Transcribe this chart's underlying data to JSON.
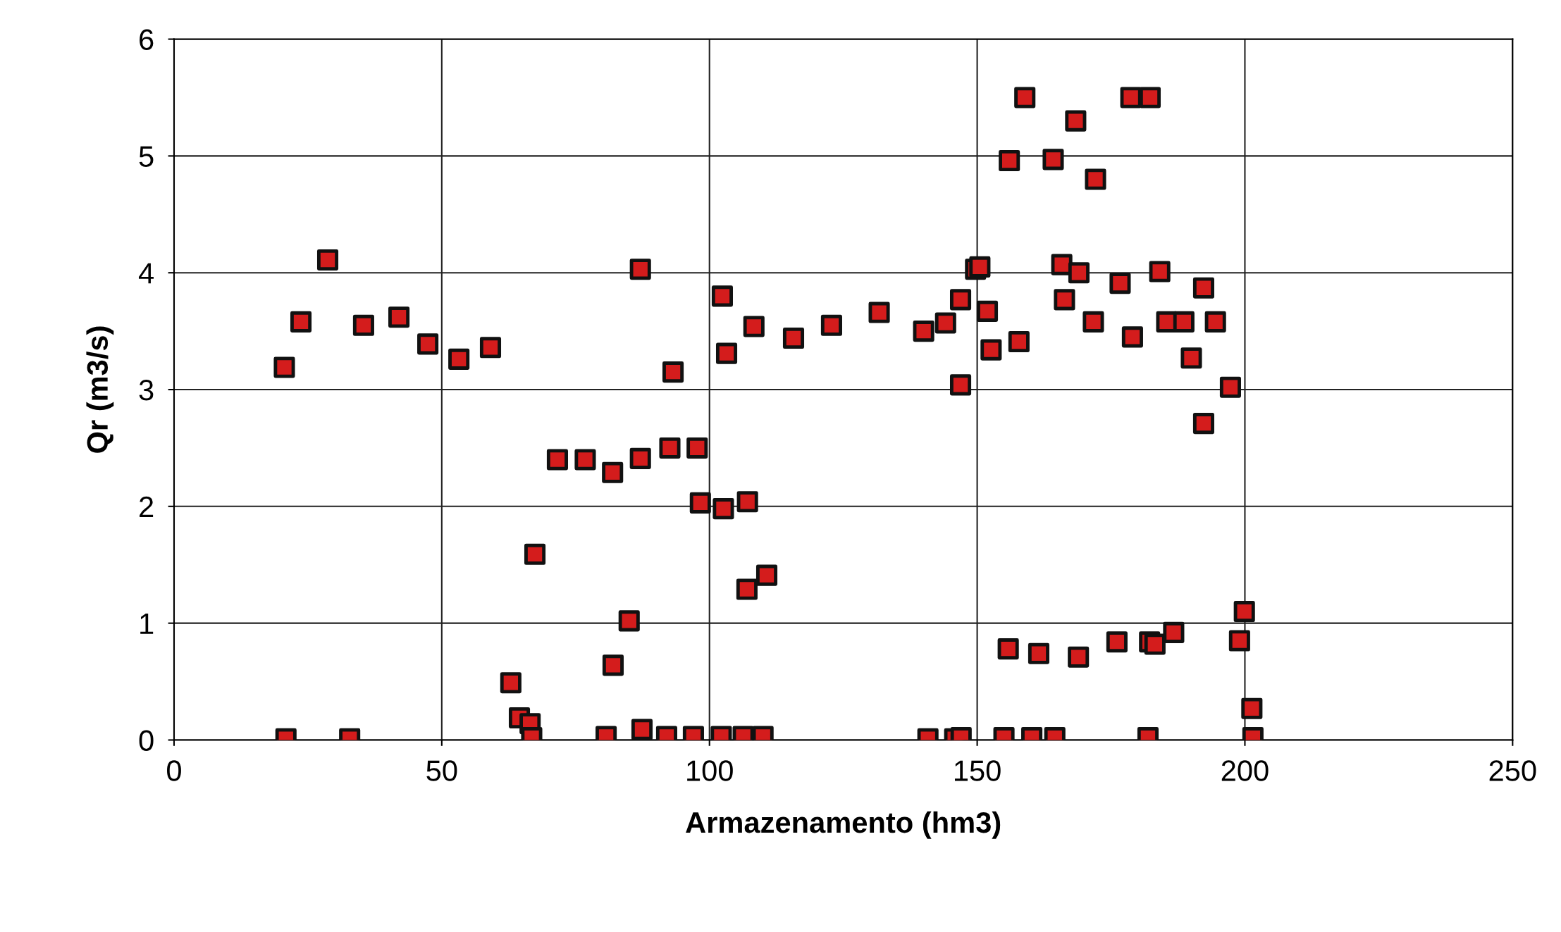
{
  "chart_data": {
    "type": "scatter",
    "xlabel": "Armazenamento (hm3)",
    "ylabel": "Qr (m3/s)",
    "xlim": [
      0,
      250
    ],
    "ylim": [
      0,
      6
    ],
    "xticks": [
      0,
      50,
      100,
      150,
      200,
      250
    ],
    "yticks": [
      0,
      1,
      2,
      3,
      4,
      5,
      6
    ],
    "grid": true,
    "marker": "square",
    "series": [
      {
        "color": "#d41c1c",
        "x": [
          20.6,
          23.7,
          28.7,
          35.4,
          42.0,
          47.4,
          53.2,
          59.1,
          87.1,
          93.2,
          102.4,
          103.2,
          108.3,
          115.7,
          122.8,
          71.6,
          76.8,
          81.9,
          87.1,
          92.6,
          97.7,
          98.3,
          102.6,
          107.1,
          67.4,
          107.0,
          110.7,
          85.0,
          82.0,
          62.9,
          64.5,
          66.5,
          66.8,
          20.9,
          32.8,
          80.7,
          87.4,
          92.0,
          97.0,
          102.2,
          106.3,
          110.0,
          158.9,
          178.7,
          182.3,
          168.4,
          156.0,
          164.2,
          172.1,
          131.7,
          140.0,
          144.1,
          146.9,
          149.7,
          150.5,
          151.9,
          152.6,
          157.8,
          146.9,
          165.8,
          169.0,
          166.3,
          171.7,
          176.7,
          179.0,
          184.1,
          185.4,
          188.6,
          192.3,
          194.5,
          190.0,
          197.3,
          192.3,
          155.8,
          161.5,
          168.9,
          176.1,
          182.2,
          183.2,
          186.7,
          199.9,
          199.0,
          201.3,
          201.5,
          140.8,
          145.8,
          147.0,
          155.0,
          160.2,
          164.5,
          181.9
        ],
        "values": [
          3.19,
          3.58,
          4.11,
          3.55,
          3.62,
          3.39,
          3.26,
          3.36,
          4.03,
          3.15,
          3.8,
          3.31,
          3.54,
          3.44,
          3.55,
          2.4,
          2.4,
          2.29,
          2.41,
          2.5,
          2.5,
          2.03,
          1.98,
          2.04,
          1.59,
          1.29,
          1.41,
          1.02,
          0.64,
          0.49,
          0.19,
          0.14,
          0.02,
          0.01,
          0.01,
          0.03,
          0.09,
          0.03,
          0.03,
          0.03,
          0.03,
          0.03,
          5.5,
          5.5,
          5.5,
          5.3,
          4.96,
          4.97,
          4.8,
          3.66,
          3.5,
          3.57,
          3.77,
          4.03,
          4.05,
          3.67,
          3.34,
          3.41,
          3.04,
          4.07,
          4.0,
          3.77,
          3.58,
          3.91,
          3.45,
          4.01,
          3.58,
          3.58,
          3.87,
          3.58,
          3.27,
          3.02,
          2.71,
          0.78,
          0.74,
          0.71,
          0.84,
          0.84,
          0.82,
          0.92,
          1.1,
          0.85,
          0.27,
          0.02,
          0.01,
          0.01,
          0.02,
          0.02,
          0.02,
          0.02,
          0.02
        ]
      }
    ]
  }
}
